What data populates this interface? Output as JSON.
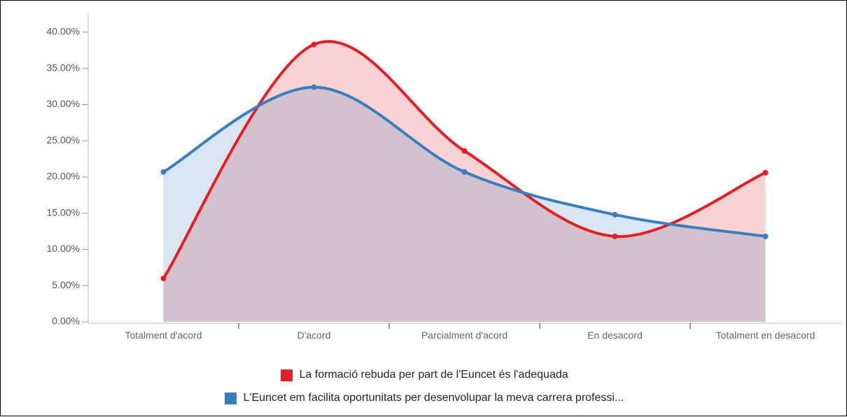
{
  "chart_data": {
    "type": "line",
    "categories": [
      "Totalment d'acord",
      "D'acord",
      "Parcialment d'acord",
      "En desacord",
      "Totalment en desacord"
    ],
    "series": [
      {
        "name": "La formació rebuda per part de l'Euncet és l'adequada",
        "color": "#e31e24",
        "values": [
          6,
          38.3,
          23.6,
          11.8,
          20.6
        ]
      },
      {
        "name": "L'Euncet em facilita oportunitats per desenvolupar la meva carrera professi...",
        "color": "#3a7ebf",
        "values": [
          20.7,
          32.4,
          20.7,
          14.8,
          11.8
        ]
      }
    ],
    "ylim": [
      0,
      40
    ],
    "yticks": [
      {
        "value": 0,
        "label": "0.00%"
      },
      {
        "value": 5,
        "label": "5.00%"
      },
      {
        "value": 10,
        "label": "10.00%"
      },
      {
        "value": 15,
        "label": "15.00%"
      },
      {
        "value": 20,
        "label": "20.00%"
      },
      {
        "value": 25,
        "label": "25.00%"
      },
      {
        "value": 30,
        "label": "30.00%"
      },
      {
        "value": 35,
        "label": "35.00%"
      },
      {
        "value": 40,
        "label": "40.00%"
      }
    ],
    "smooth": true,
    "area": true,
    "grid": false,
    "legend": "bottom"
  }
}
